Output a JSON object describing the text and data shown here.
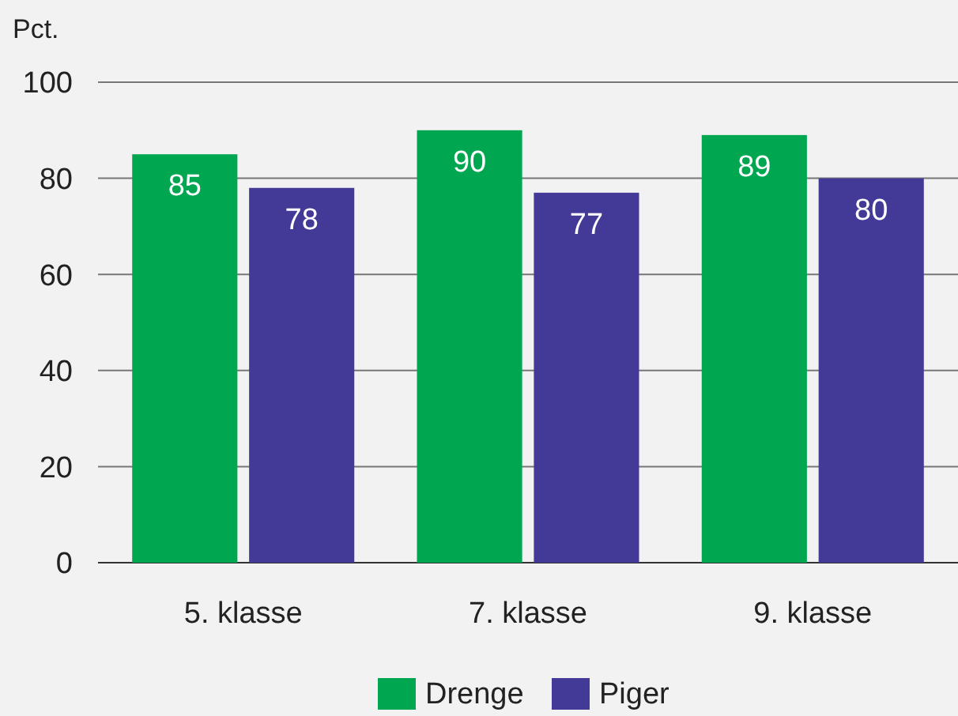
{
  "chart_data": {
    "type": "bar",
    "ylabel": "Pct.",
    "categories": [
      "5. klasse",
      "7. klasse",
      "9. klasse"
    ],
    "series": [
      {
        "name": "Drenge",
        "color": "#00a650",
        "values": [
          85,
          90,
          89
        ]
      },
      {
        "name": "Piger",
        "color": "#433a97",
        "values": [
          78,
          77,
          80
        ]
      }
    ],
    "ylim": [
      0,
      100
    ],
    "yticks": [
      0,
      20,
      40,
      60,
      80,
      100
    ],
    "grid": "y",
    "legend": "bottom",
    "data_labels": true
  }
}
